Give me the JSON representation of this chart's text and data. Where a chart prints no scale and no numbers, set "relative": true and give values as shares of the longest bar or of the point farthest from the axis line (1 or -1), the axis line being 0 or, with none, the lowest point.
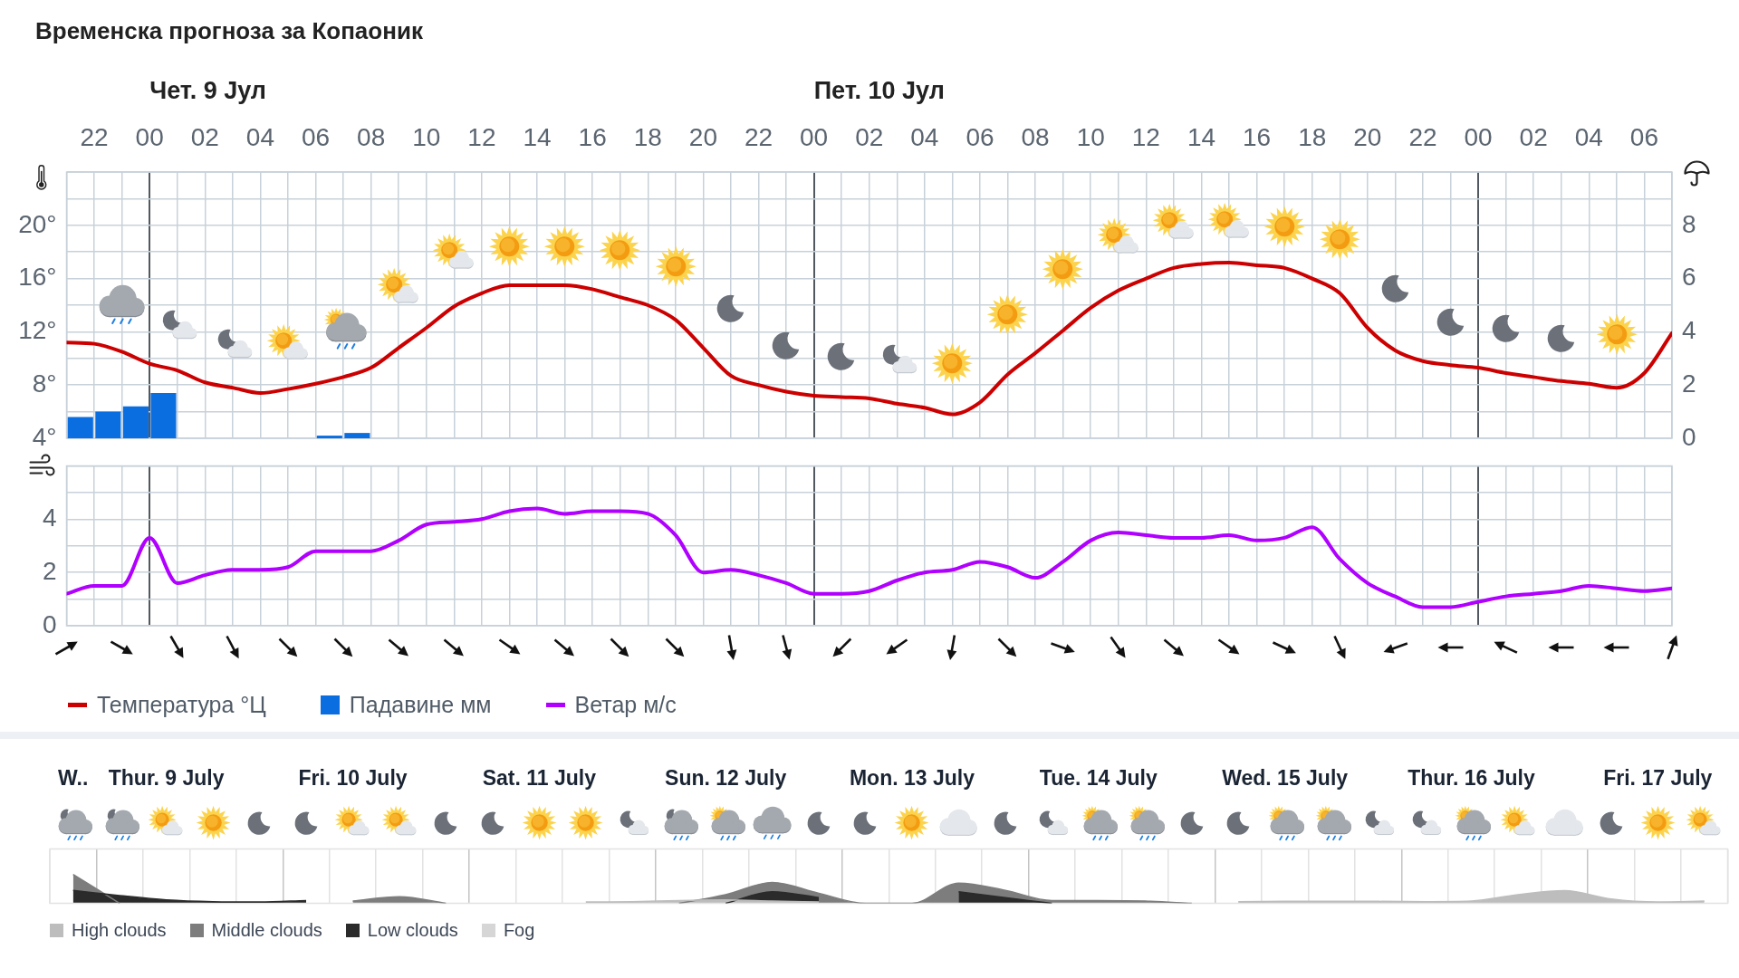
{
  "chart_data": [
    {
      "type": "line",
      "title": "Временска прогноза за Копаоник",
      "x": [
        "--07-08T21:00",
        "--07-08T22:00",
        "--07-08T23:00",
        "--07-09T00:00",
        "--07-09T01:00",
        "--07-09T02:00",
        "--07-09T03:00",
        "--07-09T04:00",
        "--07-09T05:00",
        "--07-09T06:00",
        "--07-09T07:00",
        "--07-09T08:00",
        "--07-09T09:00",
        "--07-09T10:00",
        "--07-09T11:00",
        "--07-09T12:00",
        "--07-09T13:00",
        "--07-09T14:00",
        "--07-09T15:00",
        "--07-09T16:00",
        "--07-09T17:00",
        "--07-09T18:00",
        "--07-09T19:00",
        "--07-09T20:00",
        "--07-09T21:00",
        "--07-09T22:00",
        "--07-09T23:00",
        "--07-10T00:00",
        "--07-10T01:00",
        "--07-10T02:00",
        "--07-10T03:00",
        "--07-10T04:00",
        "--07-10T05:00",
        "--07-10T06:00",
        "--07-10T07:00",
        "--07-10T08:00",
        "--07-10T09:00",
        "--07-10T10:00",
        "--07-10T11:00",
        "--07-10T12:00",
        "--07-10T13:00",
        "--07-10T14:00",
        "--07-10T15:00",
        "--07-10T16:00",
        "--07-10T17:00",
        "--07-10T18:00",
        "--07-10T19:00",
        "--07-10T20:00",
        "--07-10T21:00",
        "--07-10T22:00",
        "--07-10T23:00",
        "--07-11T00:00",
        "--07-11T01:00",
        "--07-11T02:00",
        "--07-11T03:00",
        "--07-11T04:00",
        "--07-11T05:00",
        "--07-11T06:00",
        "--07-11T07:00"
      ],
      "xlim": [
        "--07-08T21:00",
        "--07-11T07:00"
      ],
      "xticks": [
        {
          "value": "--07-08T21:00",
          "label": null
        },
        {
          "value": "--07-08T22:00",
          "label": "22"
        },
        {
          "value": "--07-08T23:00",
          "label": null
        },
        {
          "value": "--07-09T00:00",
          "label": "00"
        },
        {
          "value": "--07-09T01:00",
          "label": null
        },
        {
          "value": "--07-09T02:00",
          "label": "02"
        },
        {
          "value": "--07-09T03:00",
          "label": null
        },
        {
          "value": "--07-09T04:00",
          "label": "04"
        },
        {
          "value": "--07-09T05:00",
          "label": null
        },
        {
          "value": "--07-09T06:00",
          "label": "06"
        },
        {
          "value": "--07-09T07:00",
          "label": null
        },
        {
          "value": "--07-09T08:00",
          "label": "08"
        },
        {
          "value": "--07-09T09:00",
          "label": null
        },
        {
          "value": "--07-09T10:00",
          "label": "10"
        },
        {
          "value": "--07-09T11:00",
          "label": null
        },
        {
          "value": "--07-09T12:00",
          "label": "12"
        },
        {
          "value": "--07-09T13:00",
          "label": null
        },
        {
          "value": "--07-09T14:00",
          "label": "14"
        },
        {
          "value": "--07-09T15:00",
          "label": null
        },
        {
          "value": "--07-09T16:00",
          "label": "16"
        },
        {
          "value": "--07-09T17:00",
          "label": null
        },
        {
          "value": "--07-09T18:00",
          "label": "18"
        },
        {
          "value": "--07-09T19:00",
          "label": null
        },
        {
          "value": "--07-09T20:00",
          "label": "20"
        },
        {
          "value": "--07-09T21:00",
          "label": null
        },
        {
          "value": "--07-09T22:00",
          "label": "22"
        },
        {
          "value": "--07-09T23:00",
          "label": null
        },
        {
          "value": "--07-10T00:00",
          "label": "00"
        },
        {
          "value": "--07-10T01:00",
          "label": null
        },
        {
          "value": "--07-10T02:00",
          "label": "02"
        },
        {
          "value": "--07-10T03:00",
          "label": null
        },
        {
          "value": "--07-10T04:00",
          "label": "04"
        },
        {
          "value": "--07-10T05:00",
          "label": null
        },
        {
          "value": "--07-10T06:00",
          "label": "06"
        },
        {
          "value": "--07-10T07:00",
          "label": null
        },
        {
          "value": "--07-10T08:00",
          "label": "08"
        },
        {
          "value": "--07-10T09:00",
          "label": null
        },
        {
          "value": "--07-10T10:00",
          "label": "10"
        },
        {
          "value": "--07-10T11:00",
          "label": null
        },
        {
          "value": "--07-10T12:00",
          "label": "12"
        },
        {
          "value": "--07-10T13:00",
          "label": null
        },
        {
          "value": "--07-10T14:00",
          "label": "14"
        },
        {
          "value": "--07-10T15:00",
          "label": null
        },
        {
          "value": "--07-10T16:00",
          "label": "16"
        },
        {
          "value": "--07-10T17:00",
          "label": null
        },
        {
          "value": "--07-10T18:00",
          "label": "18"
        },
        {
          "value": "--07-10T19:00",
          "label": null
        },
        {
          "value": "--07-10T20:00",
          "label": "20"
        },
        {
          "value": "--07-10T21:00",
          "label": null
        },
        {
          "value": "--07-10T22:00",
          "label": "22"
        },
        {
          "value": "--07-10T23:00",
          "label": null
        },
        {
          "value": "--07-11T00:00",
          "label": "00"
        },
        {
          "value": "--07-11T01:00",
          "label": null
        },
        {
          "value": "--07-11T02:00",
          "label": "02"
        },
        {
          "value": "--07-11T03:00",
          "label": null
        },
        {
          "value": "--07-11T04:00",
          "label": "04"
        },
        {
          "value": "--07-11T05:00",
          "label": null
        },
        {
          "value": "--07-11T06:00",
          "label": "06"
        },
        {
          "value": "--07-11T07:00",
          "label": null
        }
      ],
      "ylim": [
        4,
        24
      ],
      "yticks": [
        {
          "value": 4,
          "label": "4°"
        },
        {
          "value": 6,
          "label": null
        },
        {
          "value": 8,
          "label": "8°"
        },
        {
          "value": 10,
          "label": null
        },
        {
          "value": 12,
          "label": "12°"
        },
        {
          "value": 14,
          "label": null
        },
        {
          "value": 16,
          "label": "16°"
        },
        {
          "value": 18,
          "label": null
        },
        {
          "value": 20,
          "label": "20°"
        },
        {
          "value": 22,
          "label": null
        },
        {
          "value": 24,
          "label": null
        }
      ],
      "y2lim": [
        0,
        10
      ],
      "y2ticks": [
        0,
        2,
        4,
        6,
        8
      ],
      "series": [
        {
          "name": "Температура °Ц",
          "color": "#cc0000",
          "values": [
            11.2,
            11.1,
            10.5,
            9.6,
            9.1,
            8.2,
            7.8,
            7.4,
            7.7,
            8.1,
            8.6,
            9.3,
            10.8,
            12.3,
            13.9,
            14.9,
            15.5,
            15.5,
            15.5,
            15.2,
            14.6,
            14.0,
            12.9,
            10.8,
            8.7,
            8.0,
            7.5,
            7.2,
            7.1,
            7.0,
            6.6,
            6.3,
            5.8,
            6.7,
            8.8,
            10.4,
            12.1,
            13.8,
            15.1,
            16.0,
            16.8,
            17.1,
            17.2,
            17.0,
            16.8,
            16.0,
            14.9,
            12.3,
            10.6,
            9.8,
            9.5,
            9.3,
            8.9,
            8.6,
            8.3,
            8.1,
            7.8,
            8.9,
            11.9
          ]
        },
        {
          "name": "Падавине мм",
          "type": "bar",
          "axis": "y2",
          "color": "#0a6ee0",
          "x": [
            "--07-08T21:30",
            "--07-08T22:30",
            "--07-08T23:30",
            "--07-09T00:30",
            "--07-09T06:30",
            "--07-09T07:30"
          ],
          "values": [
            0.8,
            1.0,
            1.2,
            1.7,
            0.1,
            0.2
          ]
        }
      ],
      "annotations": [
        "Чет. 9 Јул",
        "Пет. 10 Јул"
      ],
      "grid": true,
      "legend": "bottom"
    },
    {
      "type": "line",
      "x": [
        "--07-08T21:00",
        "--07-08T22:00",
        "--07-08T23:00",
        "--07-09T00:00",
        "--07-09T01:00",
        "--07-09T02:00",
        "--07-09T03:00",
        "--07-09T04:00",
        "--07-09T05:00",
        "--07-09T06:00",
        "--07-09T07:00",
        "--07-09T08:00",
        "--07-09T09:00",
        "--07-09T10:00",
        "--07-09T11:00",
        "--07-09T12:00",
        "--07-09T13:00",
        "--07-09T14:00",
        "--07-09T15:00",
        "--07-09T16:00",
        "--07-09T17:00",
        "--07-09T18:00",
        "--07-09T19:00",
        "--07-09T20:00",
        "--07-09T21:00",
        "--07-09T22:00",
        "--07-09T23:00",
        "--07-10T00:00",
        "--07-10T01:00",
        "--07-10T02:00",
        "--07-10T03:00",
        "--07-10T04:00",
        "--07-10T05:00",
        "--07-10T06:00",
        "--07-10T07:00",
        "--07-10T08:00",
        "--07-10T09:00",
        "--07-10T10:00",
        "--07-10T11:00",
        "--07-10T12:00",
        "--07-10T13:00",
        "--07-10T14:00",
        "--07-10T15:00",
        "--07-10T16:00",
        "--07-10T17:00",
        "--07-10T18:00",
        "--07-10T19:00",
        "--07-10T20:00",
        "--07-10T21:00",
        "--07-10T22:00",
        "--07-10T23:00",
        "--07-11T00:00",
        "--07-11T01:00",
        "--07-11T02:00",
        "--07-11T03:00",
        "--07-11T04:00",
        "--07-11T05:00",
        "--07-11T06:00",
        "--07-11T07:00"
      ],
      "xlim": [
        "--07-08T21:00",
        "--07-11T07:00"
      ],
      "xticks": [
        {
          "value": "--07-08T21:00",
          "label": null
        },
        {
          "value": "--07-08T22:00",
          "label": null
        },
        {
          "value": "--07-08T23:00",
          "label": null
        },
        {
          "value": "--07-09T00:00",
          "label": null
        },
        {
          "value": "--07-09T01:00",
          "label": null
        },
        {
          "value": "--07-09T02:00",
          "label": null
        },
        {
          "value": "--07-09T03:00",
          "label": null
        },
        {
          "value": "--07-09T04:00",
          "label": null
        },
        {
          "value": "--07-09T05:00",
          "label": null
        },
        {
          "value": "--07-09T06:00",
          "label": null
        },
        {
          "value": "--07-09T07:00",
          "label": null
        },
        {
          "value": "--07-09T08:00",
          "label": null
        },
        {
          "value": "--07-09T09:00",
          "label": null
        },
        {
          "value": "--07-09T10:00",
          "label": null
        },
        {
          "value": "--07-09T11:00",
          "label": null
        },
        {
          "value": "--07-09T12:00",
          "label": null
        },
        {
          "value": "--07-09T13:00",
          "label": null
        },
        {
          "value": "--07-09T14:00",
          "label": null
        },
        {
          "value": "--07-09T15:00",
          "label": null
        },
        {
          "value": "--07-09T16:00",
          "label": null
        },
        {
          "value": "--07-09T17:00",
          "label": null
        },
        {
          "value": "--07-09T18:00",
          "label": null
        },
        {
          "value": "--07-09T19:00",
          "label": null
        },
        {
          "value": "--07-09T20:00",
          "label": null
        },
        {
          "value": "--07-09T21:00",
          "label": null
        },
        {
          "value": "--07-09T22:00",
          "label": null
        },
        {
          "value": "--07-09T23:00",
          "label": null
        },
        {
          "value": "--07-10T00:00",
          "label": null
        },
        {
          "value": "--07-10T01:00",
          "label": null
        },
        {
          "value": "--07-10T02:00",
          "label": null
        },
        {
          "value": "--07-10T03:00",
          "label": null
        },
        {
          "value": "--07-10T04:00",
          "label": null
        },
        {
          "value": "--07-10T05:00",
          "label": null
        },
        {
          "value": "--07-10T06:00",
          "label": null
        },
        {
          "value": "--07-10T07:00",
          "label": null
        },
        {
          "value": "--07-10T08:00",
          "label": null
        },
        {
          "value": "--07-10T09:00",
          "label": null
        },
        {
          "value": "--07-10T10:00",
          "label": null
        },
        {
          "value": "--07-10T11:00",
          "label": null
        },
        {
          "value": "--07-10T12:00",
          "label": null
        },
        {
          "value": "--07-10T13:00",
          "label": null
        },
        {
          "value": "--07-10T14:00",
          "label": null
        },
        {
          "value": "--07-10T15:00",
          "label": null
        },
        {
          "value": "--07-10T16:00",
          "label": null
        },
        {
          "value": "--07-10T17:00",
          "label": null
        },
        {
          "value": "--07-10T18:00",
          "label": null
        },
        {
          "value": "--07-10T19:00",
          "label": null
        },
        {
          "value": "--07-10T20:00",
          "label": null
        },
        {
          "value": "--07-10T21:00",
          "label": null
        },
        {
          "value": "--07-10T22:00",
          "label": null
        },
        {
          "value": "--07-10T23:00",
          "label": null
        },
        {
          "value": "--07-11T00:00",
          "label": null
        },
        {
          "value": "--07-11T01:00",
          "label": null
        },
        {
          "value": "--07-11T02:00",
          "label": null
        },
        {
          "value": "--07-11T03:00",
          "label": null
        },
        {
          "value": "--07-11T04:00",
          "label": null
        },
        {
          "value": "--07-11T05:00",
          "label": null
        },
        {
          "value": "--07-11T06:00",
          "label": null
        },
        {
          "value": "--07-11T07:00",
          "label": null
        }
      ],
      "ylim": [
        0,
        6
      ],
      "yticks": [
        0,
        {
          "value": 1,
          "label": null
        },
        2,
        {
          "value": 3,
          "label": null
        },
        4,
        {
          "value": 5,
          "label": null
        },
        {
          "value": 6,
          "label": null
        }
      ],
      "series": [
        {
          "name": "Ветар м/с",
          "color": "#b000ff",
          "values": [
            1.2,
            1.5,
            1.5,
            3.3,
            1.6,
            1.9,
            2.1,
            2.1,
            2.2,
            2.8,
            2.8,
            2.8,
            3.2,
            3.8,
            3.9,
            4.0,
            4.3,
            4.4,
            4.2,
            4.3,
            4.3,
            4.2,
            3.4,
            2.0,
            2.1,
            1.9,
            1.6,
            1.2,
            1.2,
            1.3,
            1.7,
            2.0,
            2.1,
            2.4,
            2.2,
            1.8,
            2.4,
            3.2,
            3.5,
            3.4,
            3.3,
            3.3,
            3.4,
            3.2,
            3.3,
            3.7,
            2.5,
            1.6,
            1.1,
            0.7,
            0.7,
            0.9,
            1.1,
            1.2,
            1.3,
            1.5,
            1.4,
            1.3,
            1.4
          ]
        }
      ],
      "grid": true,
      "legend": "bottom",
      "tick_labels": "y"
    },
    {
      "type": "area",
      "relative": true,
      "categories": [
        "W..",
        null,
        "Thur. 9 July",
        null,
        null,
        null,
        "Fri. 10 July",
        null,
        null,
        null,
        "Sat. 11 July",
        null,
        null,
        null,
        "Sun. 12 July",
        null,
        null,
        null,
        "Mon. 13 July",
        null,
        null,
        null,
        "Tue. 14 July",
        null,
        null,
        null,
        "Wed. 15 July",
        null,
        null,
        null,
        "Thur. 16 July",
        null,
        null,
        null,
        "Fri. 17 July",
        null
      ],
      "series": [
        {
          "name": "High clouds",
          "color": "#bdbdbd",
          "values": [
            null,
            null,
            null,
            null,
            null,
            null,
            null,
            null,
            null,
            null,
            null,
            0.05,
            0.06,
            0.1,
            0.12,
            0.08,
            0.05,
            null,
            null,
            null,
            null,
            null,
            null,
            null,
            null,
            0.06,
            0.07,
            0.07,
            0.07,
            0.06,
            0.08,
            0.3,
            0.44,
            0.15,
            0.05,
            0.08
          ]
        },
        {
          "name": "Middle clouds",
          "color": "#7d7d7d",
          "values": [
            1,
            0,
            null,
            null,
            null,
            null,
            0.08,
            0.23,
            0,
            null,
            null,
            null,
            null,
            0,
            0.3,
            0.72,
            0.35,
            0,
            0,
            0.7,
            0.45,
            0.1,
            0.1,
            0.08,
            0,
            null,
            null,
            null,
            null,
            null,
            null,
            null,
            null,
            null,
            null,
            null
          ]
        },
        {
          "name": "Low clouds",
          "color": "#2b2b2b",
          "values": [
            0.45,
            0.27,
            0.12,
            0.06,
            0.05,
            0.1,
            null,
            null,
            null,
            null,
            null,
            null,
            null,
            null,
            0,
            0.4,
            0.2,
            null,
            null,
            0.4,
            0.2,
            0,
            null,
            null,
            null,
            null,
            null,
            null,
            null,
            null,
            null,
            null,
            null,
            null,
            null,
            null
          ]
        },
        {
          "name": "Fog",
          "color": "#d6d6d6",
          "values": [
            null,
            null,
            null,
            null,
            null,
            null,
            null,
            null,
            null,
            null,
            null,
            null,
            null,
            null,
            null,
            null,
            null,
            null,
            null,
            null,
            null,
            null,
            null,
            null,
            null,
            null,
            null,
            null,
            null,
            null,
            null,
            null,
            null,
            null,
            null,
            null
          ]
        }
      ],
      "grid": "x",
      "legend": "bottom",
      "tick_labels": "x"
    }
  ]
}
